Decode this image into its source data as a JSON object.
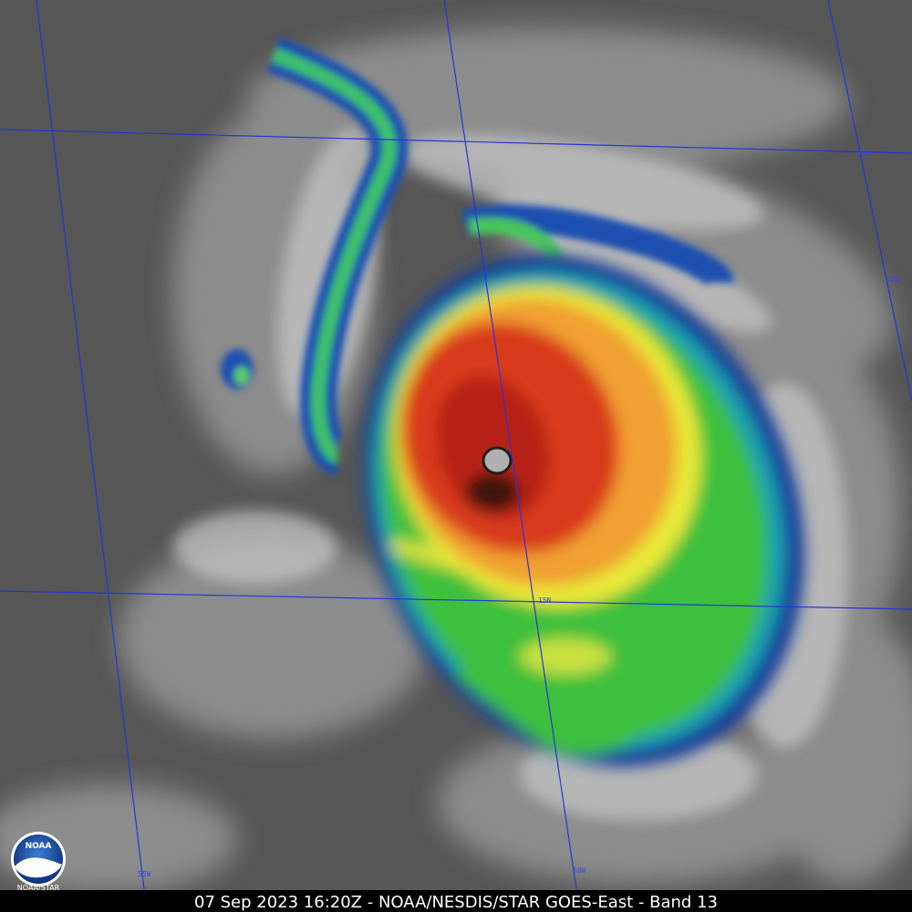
{
  "caption": "07 Sep 2023 16:20Z - NOAA/NESDIS/STAR GOES-East - Band 13",
  "grid_labels": [
    "20N",
    "45W",
    "15N",
    "55W",
    "50W"
  ],
  "logo": {
    "name": "NOAA",
    "caption": "NOAA/STAR"
  }
}
